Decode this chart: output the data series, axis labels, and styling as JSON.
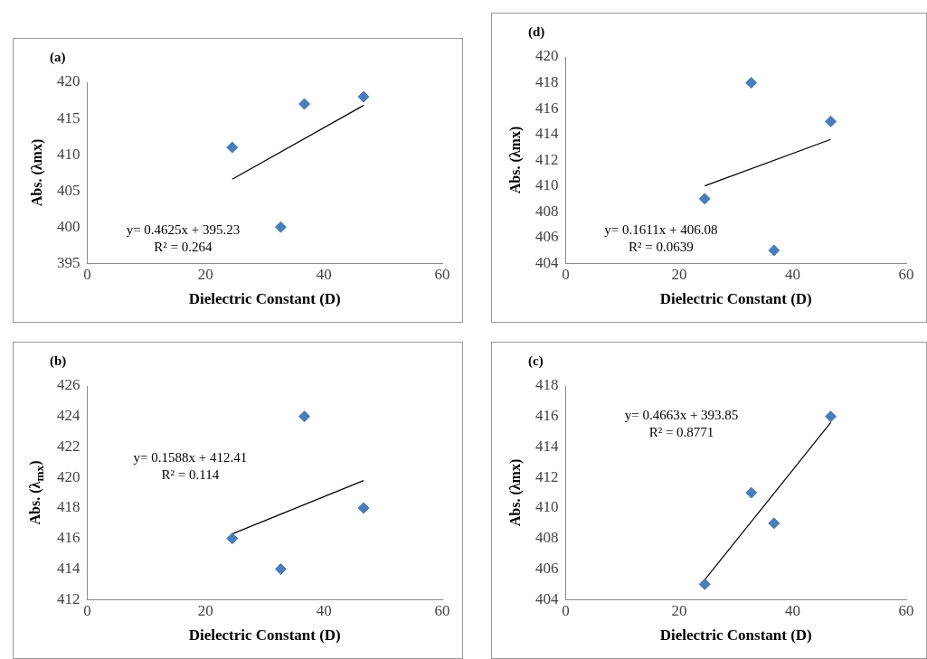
{
  "chart_data": [
    {
      "type": "scatter",
      "title": "(a)",
      "xlabel": "Dielectric Constant (D)",
      "ylabel": "Abs. (λmx)",
      "marker": "diamond",
      "grid": false,
      "legend": false,
      "xlim": [
        0,
        60
      ],
      "xticks": [
        0,
        20,
        40,
        60
      ],
      "ylim": [
        395,
        420
      ],
      "yticks": [
        395,
        400,
        405,
        410,
        415,
        420
      ],
      "annotations": [
        "y= 0.4625x + 395.23",
        "R² = 0.264"
      ],
      "series": [
        {
          "x": [
            24.5,
            32.7,
            36.7,
            46.7
          ],
          "values": [
            411,
            400,
            417,
            418
          ],
          "color": "#4a7ebb"
        },
        {
          "type": "line",
          "x": [
            24.5,
            46.7
          ],
          "values": [
            406.6,
            416.8
          ],
          "color": "#000000",
          "marker": "none"
        }
      ]
    },
    {
      "type": "scatter",
      "title": "(d)",
      "xlabel": "Dielectric Constant (D)",
      "ylabel": "Abs. (λmx)",
      "marker": "diamond",
      "grid": false,
      "legend": false,
      "xlim": [
        0,
        60
      ],
      "xticks": [
        0,
        20,
        40,
        60
      ],
      "ylim": [
        404,
        420
      ],
      "yticks": [
        404,
        406,
        408,
        410,
        412,
        414,
        416,
        418,
        420
      ],
      "annotations": [
        "y= 0.1611x + 406.08",
        "R² = 0.0639"
      ],
      "series": [
        {
          "x": [
            24.5,
            32.7,
            36.7,
            46.7
          ],
          "values": [
            409,
            418,
            405,
            415
          ],
          "color": "#4a7ebb"
        },
        {
          "type": "line",
          "x": [
            24.5,
            46.7
          ],
          "values": [
            410.0,
            413.6
          ],
          "color": "#000000",
          "marker": "none"
        }
      ]
    },
    {
      "type": "scatter",
      "title": "(b)",
      "xlabel": "Dielectric Constant (D)",
      "ylabel": "Abs. (λ$_{mx}$)",
      "marker": "diamond",
      "grid": false,
      "legend": false,
      "xlim": [
        0,
        60
      ],
      "xticks": [
        0,
        20,
        40,
        60
      ],
      "ylim": [
        412,
        426
      ],
      "yticks": [
        412,
        414,
        416,
        418,
        420,
        422,
        424,
        426
      ],
      "annotations": [
        "y= 0.1588x + 412.41",
        "R² = 0.114"
      ],
      "series": [
        {
          "x": [
            24.5,
            32.7,
            36.7,
            46.7
          ],
          "values": [
            416,
            414,
            424,
            418
          ],
          "color": "#4a7ebb"
        },
        {
          "type": "line",
          "x": [
            24.5,
            46.7
          ],
          "values": [
            416.3,
            419.8
          ],
          "color": "#000000",
          "marker": "none"
        }
      ]
    },
    {
      "type": "scatter",
      "title": "(c)",
      "xlabel": "Dielectric Constant (D)",
      "ylabel": "Abs. (λmx)",
      "marker": "diamond",
      "grid": false,
      "legend": false,
      "xlim": [
        0,
        60
      ],
      "xticks": [
        0,
        20,
        40,
        60
      ],
      "ylim": [
        404,
        418
      ],
      "yticks": [
        404,
        406,
        408,
        410,
        412,
        414,
        416,
        418
      ],
      "annotations": [
        "y= 0.4663x + 393.85",
        "R² = 0.8771"
      ],
      "series": [
        {
          "x": [
            24.5,
            32.7,
            36.7,
            46.7
          ],
          "values": [
            405,
            411,
            409,
            416
          ],
          "color": "#4a7ebb"
        },
        {
          "type": "line",
          "x": [
            24.5,
            46.7
          ],
          "values": [
            405.3,
            415.6
          ],
          "color": "#000000",
          "marker": "none"
        }
      ]
    }
  ]
}
